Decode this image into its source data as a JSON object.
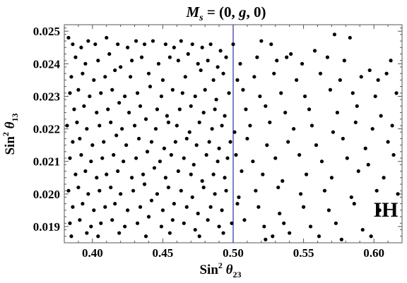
{
  "chart_data": {
    "type": "scatter",
    "title_html_parts": {
      "prefix_var": "M",
      "prefix_sub": "s",
      "rest": " = (0, ",
      "g": "g",
      "tail": ", 0)"
    },
    "xlabel": {
      "base": "Sin",
      "sup": "2",
      "theta": "θ",
      "sub": "23"
    },
    "ylabel": {
      "base": "Sin",
      "sup": "2",
      "theta": "θ",
      "sub": "13"
    },
    "xlim": [
      0.38,
      0.62
    ],
    "ylim": [
      0.0185,
      0.0252
    ],
    "x_ticks": [
      0.4,
      0.45,
      0.5,
      0.55,
      0.6
    ],
    "x_tick_labels": [
      "0.40",
      "0.45",
      "0.50",
      "0.55",
      "0.60"
    ],
    "y_ticks": [
      0.019,
      0.02,
      0.021,
      0.022,
      0.023,
      0.024,
      0.025
    ],
    "y_tick_labels": [
      "0.019",
      "0.020",
      "0.021",
      "0.022",
      "0.023",
      "0.024",
      "0.025"
    ],
    "reference_line": {
      "x": 0.5,
      "color": "#2c2ca8"
    },
    "annotation": "IH",
    "marker_color": "#000000",
    "points": [
      [
        0.383,
        0.0248
      ],
      [
        0.386,
        0.0246
      ],
      [
        0.392,
        0.0245
      ],
      [
        0.397,
        0.0247
      ],
      [
        0.402,
        0.0246
      ],
      [
        0.41,
        0.0248
      ],
      [
        0.418,
        0.0246
      ],
      [
        0.425,
        0.0245
      ],
      [
        0.431,
        0.0247
      ],
      [
        0.437,
        0.0246
      ],
      [
        0.443,
        0.0247
      ],
      [
        0.452,
        0.0246
      ],
      [
        0.458,
        0.0245
      ],
      [
        0.463,
        0.0247
      ],
      [
        0.471,
        0.0246
      ],
      [
        0.478,
        0.0245
      ],
      [
        0.484,
        0.0246
      ],
      [
        0.491,
        0.0244
      ],
      [
        0.5,
        0.0246
      ],
      [
        0.52,
        0.0247
      ],
      [
        0.527,
        0.0246
      ],
      [
        0.541,
        0.0243
      ],
      [
        0.558,
        0.0244
      ],
      [
        0.572,
        0.0249
      ],
      [
        0.583,
        0.0248
      ],
      [
        0.388,
        0.0242
      ],
      [
        0.395,
        0.024
      ],
      [
        0.404,
        0.0241
      ],
      [
        0.412,
        0.0243
      ],
      [
        0.42,
        0.0239
      ],
      [
        0.428,
        0.0241
      ],
      [
        0.435,
        0.0242
      ],
      [
        0.447,
        0.024
      ],
      [
        0.455,
        0.0242
      ],
      [
        0.461,
        0.0241
      ],
      [
        0.468,
        0.0243
      ],
      [
        0.475,
        0.024
      ],
      [
        0.482,
        0.0241
      ],
      [
        0.489,
        0.0239
      ],
      [
        0.495,
        0.0242
      ],
      [
        0.505,
        0.024
      ],
      [
        0.517,
        0.0242
      ],
      [
        0.531,
        0.0241
      ],
      [
        0.538,
        0.0242
      ],
      [
        0.549,
        0.024
      ],
      [
        0.567,
        0.0242
      ],
      [
        0.579,
        0.0241
      ],
      [
        0.597,
        0.0238
      ],
      [
        0.612,
        0.0241
      ],
      [
        0.385,
        0.0236
      ],
      [
        0.393,
        0.0237
      ],
      [
        0.401,
        0.0235
      ],
      [
        0.409,
        0.0236
      ],
      [
        0.416,
        0.0238
      ],
      [
        0.427,
        0.0236
      ],
      [
        0.44,
        0.0237
      ],
      [
        0.45,
        0.0235
      ],
      [
        0.466,
        0.0236
      ],
      [
        0.477,
        0.0238
      ],
      [
        0.486,
        0.0235
      ],
      [
        0.493,
        0.0237
      ],
      [
        0.503,
        0.0235
      ],
      [
        0.515,
        0.0236
      ],
      [
        0.529,
        0.0237
      ],
      [
        0.545,
        0.0235
      ],
      [
        0.562,
        0.0237
      ],
      [
        0.576,
        0.0235
      ],
      [
        0.591,
        0.0236
      ],
      [
        0.603,
        0.0235
      ],
      [
        0.609,
        0.0237
      ],
      [
        0.384,
        0.0231
      ],
      [
        0.39,
        0.0232
      ],
      [
        0.398,
        0.023
      ],
      [
        0.406,
        0.0231
      ],
      [
        0.414,
        0.0232
      ],
      [
        0.423,
        0.023
      ],
      [
        0.432,
        0.0231
      ],
      [
        0.441,
        0.0233
      ],
      [
        0.449,
        0.023
      ],
      [
        0.457,
        0.0232
      ],
      [
        0.464,
        0.0231
      ],
      [
        0.473,
        0.023
      ],
      [
        0.48,
        0.0232
      ],
      [
        0.488,
        0.0229
      ],
      [
        0.497,
        0.0231
      ],
      [
        0.507,
        0.0232
      ],
      [
        0.519,
        0.023
      ],
      [
        0.534,
        0.0231
      ],
      [
        0.551,
        0.023
      ],
      [
        0.569,
        0.0232
      ],
      [
        0.585,
        0.0231
      ],
      [
        0.601,
        0.023
      ],
      [
        0.616,
        0.0231
      ],
      [
        0.387,
        0.0226
      ],
      [
        0.394,
        0.0227
      ],
      [
        0.403,
        0.0225
      ],
      [
        0.411,
        0.0226
      ],
      [
        0.419,
        0.0228
      ],
      [
        0.426,
        0.0225
      ],
      [
        0.434,
        0.0227
      ],
      [
        0.446,
        0.0226
      ],
      [
        0.453,
        0.0224
      ],
      [
        0.462,
        0.0226
      ],
      [
        0.47,
        0.0227
      ],
      [
        0.479,
        0.0225
      ],
      [
        0.487,
        0.0226
      ],
      [
        0.494,
        0.0224
      ],
      [
        0.509,
        0.0226
      ],
      [
        0.523,
        0.0227
      ],
      [
        0.537,
        0.0225
      ],
      [
        0.554,
        0.0226
      ],
      [
        0.574,
        0.0225
      ],
      [
        0.588,
        0.0227
      ],
      [
        0.605,
        0.0224
      ],
      [
        0.382,
        0.0221
      ],
      [
        0.389,
        0.0222
      ],
      [
        0.396,
        0.022
      ],
      [
        0.405,
        0.0221
      ],
      [
        0.413,
        0.0222
      ],
      [
        0.421,
        0.022
      ],
      [
        0.43,
        0.0221
      ],
      [
        0.438,
        0.0223
      ],
      [
        0.445,
        0.022
      ],
      [
        0.454,
        0.0222
      ],
      [
        0.46,
        0.0221
      ],
      [
        0.469,
        0.0219
      ],
      [
        0.476,
        0.0222
      ],
      [
        0.485,
        0.022
      ],
      [
        0.492,
        0.0221
      ],
      [
        0.501,
        0.0219
      ],
      [
        0.512,
        0.0221
      ],
      [
        0.526,
        0.0222
      ],
      [
        0.543,
        0.022
      ],
      [
        0.556,
        0.0221
      ],
      [
        0.571,
        0.0219
      ],
      [
        0.587,
        0.0222
      ],
      [
        0.599,
        0.022
      ],
      [
        0.613,
        0.0221
      ],
      [
        0.386,
        0.0216
      ],
      [
        0.391,
        0.0217
      ],
      [
        0.4,
        0.0215
      ],
      [
        0.408,
        0.0216
      ],
      [
        0.417,
        0.0218
      ],
      [
        0.424,
        0.0215
      ],
      [
        0.433,
        0.0217
      ],
      [
        0.442,
        0.0216
      ],
      [
        0.451,
        0.0214
      ],
      [
        0.459,
        0.0216
      ],
      [
        0.467,
        0.0217
      ],
      [
        0.474,
        0.0215
      ],
      [
        0.483,
        0.0216
      ],
      [
        0.49,
        0.0214
      ],
      [
        0.498,
        0.0216
      ],
      [
        0.51,
        0.0217
      ],
      [
        0.524,
        0.0215
      ],
      [
        0.539,
        0.0216
      ],
      [
        0.559,
        0.0215
      ],
      [
        0.578,
        0.0217
      ],
      [
        0.594,
        0.0214
      ],
      [
        0.61,
        0.0216
      ],
      [
        0.384,
        0.0211
      ],
      [
        0.392,
        0.0212
      ],
      [
        0.399,
        0.021
      ],
      [
        0.407,
        0.0211
      ],
      [
        0.415,
        0.0212
      ],
      [
        0.422,
        0.021
      ],
      [
        0.431,
        0.0211
      ],
      [
        0.439,
        0.0213
      ],
      [
        0.448,
        0.021
      ],
      [
        0.456,
        0.0212
      ],
      [
        0.465,
        0.0211
      ],
      [
        0.472,
        0.0209
      ],
      [
        0.481,
        0.0212
      ],
      [
        0.489,
        0.021
      ],
      [
        0.496,
        0.0211
      ],
      [
        0.502,
        0.0212
      ],
      [
        0.514,
        0.021
      ],
      [
        0.53,
        0.0211
      ],
      [
        0.547,
        0.0212
      ],
      [
        0.563,
        0.021
      ],
      [
        0.581,
        0.0211
      ],
      [
        0.596,
        0.0209
      ],
      [
        0.614,
        0.0212
      ],
      [
        0.388,
        0.0206
      ],
      [
        0.395,
        0.0207
      ],
      [
        0.403,
        0.0205
      ],
      [
        0.41,
        0.0206
      ],
      [
        0.418,
        0.0207
      ],
      [
        0.428,
        0.0205
      ],
      [
        0.436,
        0.0206
      ],
      [
        0.444,
        0.0208
      ],
      [
        0.452,
        0.0205
      ],
      [
        0.461,
        0.0207
      ],
      [
        0.47,
        0.0206
      ],
      [
        0.478,
        0.0204
      ],
      [
        0.486,
        0.0206
      ],
      [
        0.494,
        0.0205
      ],
      [
        0.506,
        0.0207
      ],
      [
        0.521,
        0.0206
      ],
      [
        0.535,
        0.0204
      ],
      [
        0.552,
        0.0206
      ],
      [
        0.57,
        0.0205
      ],
      [
        0.589,
        0.0207
      ],
      [
        0.607,
        0.0205
      ],
      [
        0.383,
        0.0201
      ],
      [
        0.39,
        0.0202
      ],
      [
        0.397,
        0.02
      ],
      [
        0.405,
        0.0201
      ],
      [
        0.413,
        0.0202
      ],
      [
        0.42,
        0.02
      ],
      [
        0.429,
        0.0201
      ],
      [
        0.437,
        0.0203
      ],
      [
        0.446,
        0.02
      ],
      [
        0.454,
        0.0202
      ],
      [
        0.463,
        0.0201
      ],
      [
        0.471,
        0.0199
      ],
      [
        0.479,
        0.0202
      ],
      [
        0.487,
        0.02
      ],
      [
        0.495,
        0.0201
      ],
      [
        0.504,
        0.0199
      ],
      [
        0.516,
        0.0201
      ],
      [
        0.532,
        0.0202
      ],
      [
        0.548,
        0.02
      ],
      [
        0.565,
        0.0201
      ],
      [
        0.584,
        0.0199
      ],
      [
        0.602,
        0.0201
      ],
      [
        0.617,
        0.02
      ],
      [
        0.386,
        0.0196
      ],
      [
        0.393,
        0.0197
      ],
      [
        0.401,
        0.0195
      ],
      [
        0.409,
        0.0196
      ],
      [
        0.416,
        0.0197
      ],
      [
        0.425,
        0.0195
      ],
      [
        0.434,
        0.0196
      ],
      [
        0.442,
        0.0198
      ],
      [
        0.45,
        0.0195
      ],
      [
        0.458,
        0.0197
      ],
      [
        0.467,
        0.0196
      ],
      [
        0.475,
        0.0194
      ],
      [
        0.484,
        0.0196
      ],
      [
        0.492,
        0.0195
      ],
      [
        0.503,
        0.0197
      ],
      [
        0.518,
        0.0196
      ],
      [
        0.533,
        0.0194
      ],
      [
        0.55,
        0.0196
      ],
      [
        0.568,
        0.0195
      ],
      [
        0.586,
        0.0197
      ],
      [
        0.604,
        0.0195
      ],
      [
        0.384,
        0.0191
      ],
      [
        0.391,
        0.0192
      ],
      [
        0.399,
        0.019
      ],
      [
        0.406,
        0.0191
      ],
      [
        0.414,
        0.0192
      ],
      [
        0.423,
        0.019
      ],
      [
        0.432,
        0.0191
      ],
      [
        0.44,
        0.0193
      ],
      [
        0.449,
        0.019
      ],
      [
        0.457,
        0.0192
      ],
      [
        0.465,
        0.0191
      ],
      [
        0.473,
        0.0189
      ],
      [
        0.482,
        0.0192
      ],
      [
        0.49,
        0.019
      ],
      [
        0.499,
        0.0191
      ],
      [
        0.508,
        0.0192
      ],
      [
        0.522,
        0.019
      ],
      [
        0.536,
        0.0191
      ],
      [
        0.555,
        0.019
      ],
      [
        0.573,
        0.0191
      ],
      [
        0.592,
        0.0189
      ],
      [
        0.385,
        0.0187
      ],
      [
        0.396,
        0.0188
      ],
      [
        0.404,
        0.0187
      ],
      [
        0.419,
        0.0188
      ],
      [
        0.438,
        0.0187
      ],
      [
        0.455,
        0.0188
      ],
      [
        0.476,
        0.0187
      ],
      [
        0.493,
        0.0188
      ],
      [
        0.523,
        0.0186
      ],
      [
        0.528,
        0.0187
      ],
      [
        0.54,
        0.0188
      ],
      [
        0.561,
        0.0187
      ],
      [
        0.577,
        0.0186
      ],
      [
        0.598,
        0.0187
      ]
    ]
  }
}
